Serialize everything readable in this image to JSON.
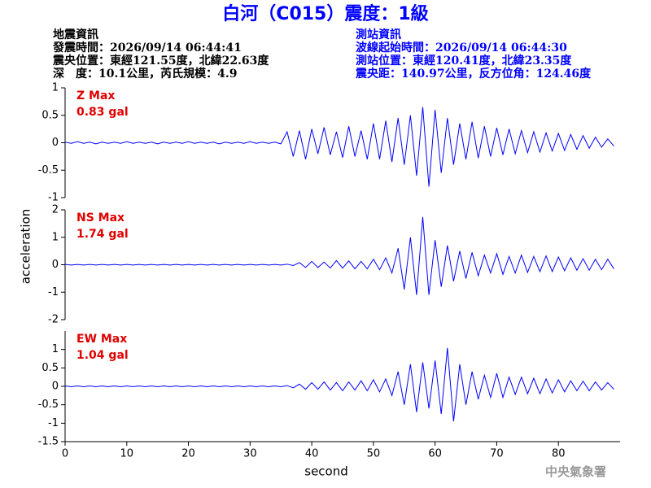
{
  "header": {
    "title": "白河（C015）震度：1級",
    "left": [
      "地震資訊",
      "發震時間：2026/09/14 06:44:41",
      "震央位置：東經121.55度，北緯22.63度",
      "深　度：10.1公里，芮氏規模：4.9"
    ],
    "right": [
      "測站資訊",
      "波線起始時間：2026/09/14 06:44:30",
      "測站位置：東經120.41度，北緯23.35度",
      "震央距：140.97公里，反方位角：124.46度"
    ]
  },
  "footer": "中央氣象署",
  "chart_data": [
    {
      "type": "line",
      "max_label": "Z Max",
      "max_value_label": "0.83 gal",
      "color": "#0000ff",
      "ylim": [
        -1,
        1
      ],
      "yticks": [
        -1,
        -0.5,
        0,
        0.5,
        1
      ],
      "xlim": [
        0,
        90
      ],
      "x": [
        0,
        1,
        2,
        3,
        4,
        5,
        6,
        7,
        8,
        9,
        10,
        11,
        12,
        13,
        14,
        15,
        16,
        17,
        18,
        19,
        20,
        21,
        22,
        23,
        24,
        25,
        26,
        27,
        28,
        29,
        30,
        31,
        32,
        33,
        34,
        35,
        36,
        37,
        38,
        39,
        40,
        41,
        42,
        43,
        44,
        45,
        46,
        47,
        48,
        49,
        50,
        51,
        52,
        53,
        54,
        55,
        56,
        57,
        58,
        59,
        60,
        61,
        62,
        63,
        64,
        65,
        66,
        67,
        68,
        69,
        70,
        71,
        72,
        73,
        74,
        75,
        76,
        77,
        78,
        79,
        80,
        81,
        82,
        83,
        84,
        85,
        86,
        87,
        88,
        89
      ],
      "values": [
        0.01,
        -0.01,
        0.02,
        -0.01,
        0.01,
        -0.02,
        0.01,
        -0.01,
        0.01,
        -0.01,
        0.02,
        -0.01,
        0.01,
        -0.01,
        0.01,
        -0.02,
        0.01,
        -0.01,
        0.01,
        -0.01,
        0.02,
        -0.01,
        0.01,
        -0.01,
        0.01,
        -0.02,
        0.01,
        -0.01,
        0.01,
        -0.01,
        0.02,
        -0.01,
        0.01,
        -0.01,
        0.01,
        -0.02,
        0.2,
        -0.25,
        0.22,
        -0.3,
        0.25,
        -0.2,
        0.28,
        -0.22,
        0.2,
        -0.27,
        0.3,
        -0.25,
        0.22,
        -0.3,
        0.35,
        -0.3,
        0.4,
        -0.35,
        0.45,
        -0.4,
        0.5,
        -0.6,
        0.65,
        -0.8,
        0.6,
        -0.55,
        0.45,
        -0.4,
        0.35,
        -0.3,
        0.38,
        -0.28,
        0.3,
        -0.25,
        0.27,
        -0.22,
        0.25,
        -0.2,
        0.22,
        -0.18,
        0.2,
        -0.17,
        0.18,
        -0.15,
        0.17,
        -0.14,
        0.15,
        -0.12,
        0.13,
        -0.1,
        0.1,
        -0.08,
        0.07,
        -0.06
      ]
    },
    {
      "type": "line",
      "max_label": "NS Max",
      "max_value_label": "1.74 gal",
      "color": "#0000ff",
      "ylabel": "acceleration",
      "ylim": [
        -2,
        2
      ],
      "yticks": [
        -2,
        -1,
        0,
        1,
        2
      ],
      "xlim": [
        0,
        90
      ],
      "x": [
        0,
        1,
        2,
        3,
        4,
        5,
        6,
        7,
        8,
        9,
        10,
        11,
        12,
        13,
        14,
        15,
        16,
        17,
        18,
        19,
        20,
        21,
        22,
        23,
        24,
        25,
        26,
        27,
        28,
        29,
        30,
        31,
        32,
        33,
        34,
        35,
        36,
        37,
        38,
        39,
        40,
        41,
        42,
        43,
        44,
        45,
        46,
        47,
        48,
        49,
        50,
        51,
        52,
        53,
        54,
        55,
        56,
        57,
        58,
        59,
        60,
        61,
        62,
        63,
        64,
        65,
        66,
        67,
        68,
        69,
        70,
        71,
        72,
        73,
        74,
        75,
        76,
        77,
        78,
        79,
        80,
        81,
        82,
        83,
        84,
        85,
        86,
        87,
        88,
        89
      ],
      "values": [
        0.01,
        -0.01,
        0.01,
        -0.01,
        0.01,
        -0.01,
        0.01,
        -0.01,
        0.01,
        -0.01,
        0.01,
        -0.01,
        0.01,
        -0.01,
        0.01,
        -0.01,
        0.01,
        -0.01,
        0.01,
        -0.01,
        0.01,
        -0.01,
        0.01,
        -0.01,
        0.01,
        -0.01,
        0.01,
        -0.01,
        0.01,
        -0.01,
        0.01,
        -0.01,
        0.01,
        -0.01,
        0.01,
        -0.01,
        0.02,
        -0.03,
        0.08,
        -0.1,
        0.12,
        -0.1,
        0.1,
        -0.12,
        0.15,
        -0.12,
        0.14,
        -0.15,
        0.12,
        -0.15,
        0.2,
        -0.18,
        0.25,
        -0.3,
        0.6,
        -0.9,
        1.0,
        -1.1,
        1.74,
        -1.1,
        0.9,
        -0.8,
        0.7,
        -0.6,
        0.5,
        -0.5,
        0.45,
        -0.4,
        0.35,
        -0.3,
        0.4,
        -0.35,
        0.3,
        -0.3,
        0.35,
        -0.28,
        0.3,
        -0.25,
        0.32,
        -0.25,
        0.28,
        -0.22,
        0.25,
        -0.2,
        0.22,
        -0.2,
        0.2,
        -0.18,
        0.2,
        -0.15
      ]
    },
    {
      "type": "line",
      "max_label": "EW Max",
      "max_value_label": "1.04 gal",
      "color": "#0000ff",
      "xlabel": "second",
      "ylim": [
        -1.5,
        1.5
      ],
      "yticks": [
        -1.5,
        -1,
        -0.5,
        0,
        0.5,
        1
      ],
      "xlim": [
        0,
        90
      ],
      "xticks": [
        0,
        10,
        20,
        30,
        40,
        50,
        60,
        70,
        80
      ],
      "x": [
        0,
        1,
        2,
        3,
        4,
        5,
        6,
        7,
        8,
        9,
        10,
        11,
        12,
        13,
        14,
        15,
        16,
        17,
        18,
        19,
        20,
        21,
        22,
        23,
        24,
        25,
        26,
        27,
        28,
        29,
        30,
        31,
        32,
        33,
        34,
        35,
        36,
        37,
        38,
        39,
        40,
        41,
        42,
        43,
        44,
        45,
        46,
        47,
        48,
        49,
        50,
        51,
        52,
        53,
        54,
        55,
        56,
        57,
        58,
        59,
        60,
        61,
        62,
        63,
        64,
        65,
        66,
        67,
        68,
        69,
        70,
        71,
        72,
        73,
        74,
        75,
        76,
        77,
        78,
        79,
        80,
        81,
        82,
        83,
        84,
        85,
        86,
        87,
        88,
        89
      ],
      "values": [
        0.01,
        -0.01,
        0.01,
        -0.01,
        0.01,
        -0.01,
        0.01,
        -0.01,
        0.01,
        -0.01,
        0.01,
        -0.01,
        0.01,
        -0.01,
        0.01,
        -0.01,
        0.01,
        -0.01,
        0.01,
        -0.01,
        0.01,
        -0.01,
        0.01,
        -0.01,
        0.01,
        -0.01,
        0.01,
        -0.01,
        0.01,
        -0.01,
        0.01,
        -0.01,
        0.01,
        -0.01,
        0.01,
        -0.01,
        0.02,
        -0.04,
        0.06,
        -0.08,
        0.1,
        -0.08,
        0.12,
        -0.1,
        0.1,
        -0.12,
        0.12,
        -0.1,
        0.15,
        -0.12,
        0.18,
        -0.15,
        0.2,
        -0.25,
        0.4,
        -0.5,
        0.6,
        -0.7,
        0.65,
        -0.6,
        0.7,
        -0.75,
        1.04,
        -0.95,
        0.6,
        -0.5,
        0.4,
        -0.35,
        0.3,
        -0.3,
        0.35,
        -0.3,
        0.25,
        -0.22,
        0.25,
        -0.2,
        0.22,
        -0.2,
        0.2,
        -0.18,
        0.18,
        -0.15,
        0.15,
        -0.12,
        0.14,
        -0.12,
        0.12,
        -0.1,
        0.1,
        -0.08
      ]
    }
  ]
}
